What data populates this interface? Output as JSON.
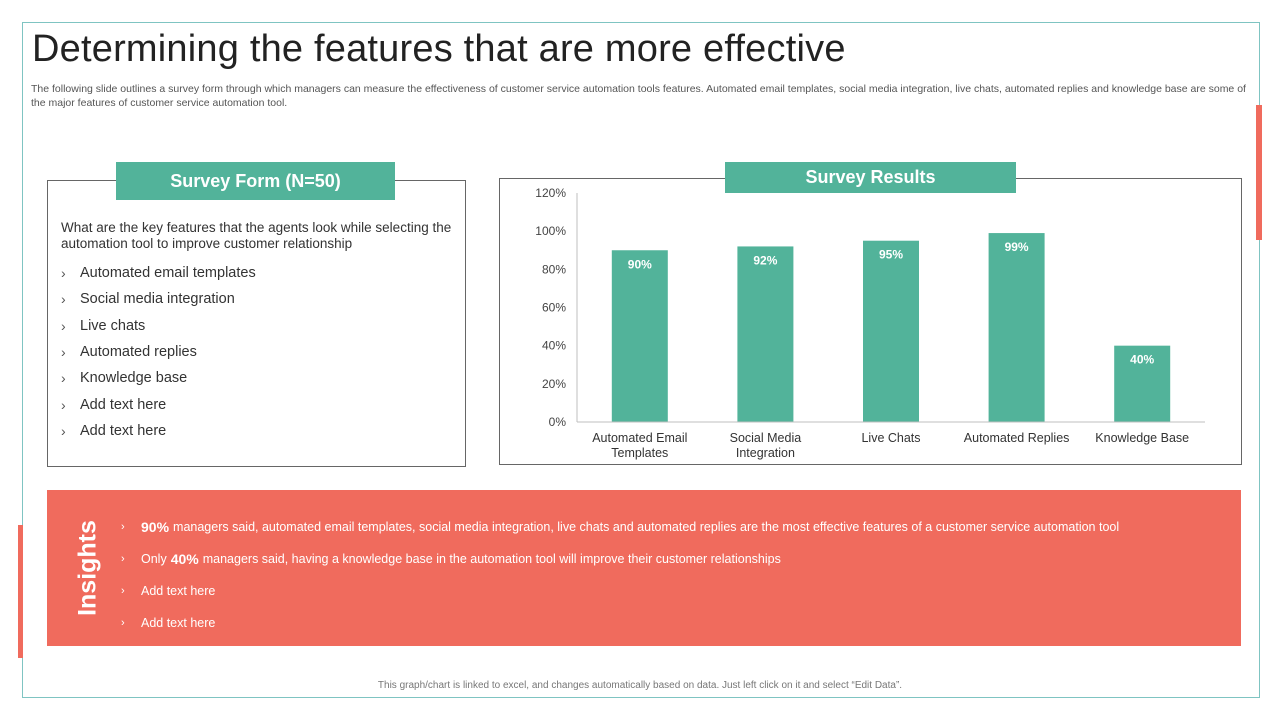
{
  "title": "Determining the features that are more effective",
  "subtitle": "The following slide outlines a survey form through which managers can measure the effectiveness of customer service automation tools features. Automated email templates, social media integration, live chats, automated replies and knowledge base are some of the major features of customer service automation tool.",
  "survey": {
    "header": "Survey Form (N=50)",
    "question": "What are the key features that the agents look while selecting the automation tool to improve customer relationship",
    "items": [
      "Automated email templates",
      "Social media integration",
      "Live chats",
      "Automated replies",
      "Knowledge base",
      "Add text here",
      "Add text here"
    ]
  },
  "results": {
    "header": "Survey Results"
  },
  "chart_data": {
    "type": "bar",
    "categories": [
      "Automated Email Templates",
      "Social Media Integration",
      "Live Chats",
      "Automated Replies",
      "Knowledge Base"
    ],
    "category_lines": [
      [
        "Automated Email",
        "Templates"
      ],
      [
        "Social Media",
        "Integration"
      ],
      [
        "Live Chats"
      ],
      [
        "Automated Replies"
      ],
      [
        "Knowledge Base"
      ]
    ],
    "values": [
      90,
      92,
      95,
      99,
      40
    ],
    "data_labels": [
      "90%",
      "92%",
      "95%",
      "99%",
      "40%"
    ],
    "yticks": [
      "0%",
      "20%",
      "40%",
      "60%",
      "80%",
      "100%",
      "120%"
    ],
    "ylim": [
      0,
      120
    ],
    "bar_color": "#52b39a",
    "title": "Survey Results",
    "xlabel": "",
    "ylabel": ""
  },
  "insights": {
    "label": "Insights",
    "items": [
      {
        "bold": "90%",
        "prefix": "",
        "text": "managers said, automated email templates, social media integration, live chats and automated replies are the most effective features of a customer service automation tool"
      },
      {
        "bold": "40%",
        "prefix": "Only",
        "text": "managers said, having a knowledge base in the automation tool will improve their customer relationships"
      },
      {
        "bold": "",
        "prefix": "",
        "text": "Add text here"
      },
      {
        "bold": "",
        "prefix": "",
        "text": "Add text here"
      }
    ]
  },
  "footnote": "This graph/chart is linked to excel, and changes automatically based on data. Just left click on it and select “Edit Data”.",
  "colors": {
    "accent": "#52b39a",
    "insights_bg": "#f06b5d",
    "frame": "#7fc4c2"
  }
}
